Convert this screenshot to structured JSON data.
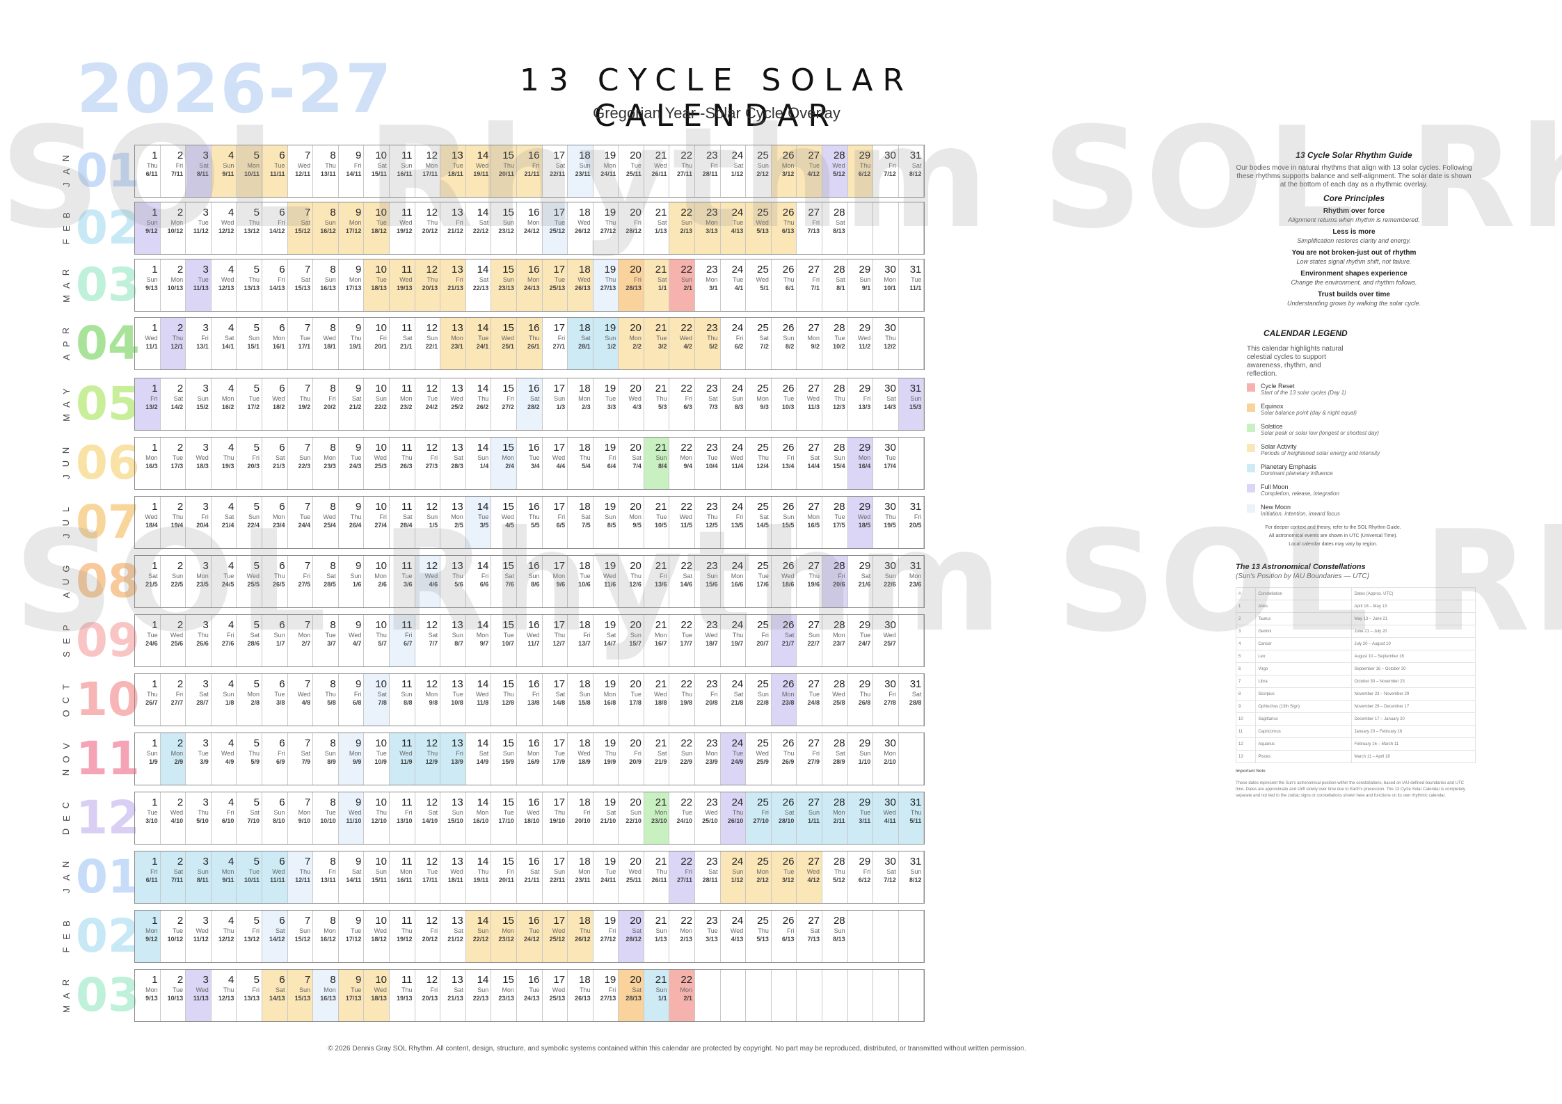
{
  "header": {
    "year": "2026-27",
    "title": "13 CYCLE SOLAR CALENDAR",
    "subtitle": "Gregorian Year -Solar Cycle Overlay"
  },
  "watermark": "SOL Rhythm SOL Rhythm",
  "colors": {
    "reset": "#f6b3ae",
    "equinox": "#f9d29c",
    "solstice": "#c9f0c0",
    "activity": "#fbe6b8",
    "planetary": "#cdeaf5",
    "full": "#dcd6f6",
    "new": "#eaf2fc"
  },
  "months": [
    {
      "abbr": "JAN",
      "num": "01",
      "color": "#c7dcf8",
      "start": "Thu",
      "days": 31,
      "lunar": "6/11",
      "marks": {
        "3": "full",
        "4": "act",
        "5": "act",
        "6": "act",
        "13": "act",
        "14": "act",
        "15": "act",
        "16": "act",
        "18": "new",
        "26": "act",
        "27": "act",
        "28": "full",
        "29": "act"
      }
    },
    {
      "abbr": "FEB",
      "num": "02",
      "color": "#c7e8f5",
      "start": "Sun",
      "days": 28,
      "lunar": "9/12",
      "marks": {
        "1": "full",
        "7": "act",
        "8": "act",
        "9": "act",
        "10": "act",
        "17": "new",
        "22": "act",
        "23": "act",
        "24": "act",
        "25": "act",
        "26": "act"
      }
    },
    {
      "abbr": "MAR",
      "num": "03",
      "color": "#bff0d9",
      "start": "Sun",
      "days": 31,
      "lunar": "9/13",
      "marks": {
        "3": "full",
        "10": "act",
        "11": "act",
        "12": "act",
        "13": "act",
        "15": "act",
        "16": "act",
        "17": "act",
        "18": "act",
        "19": "new",
        "20": "eq",
        "21": "act",
        "22": "reset"
      }
    },
    {
      "abbr": "APR",
      "num": "04",
      "color": "#a9e39a",
      "start": "Wed",
      "days": 30,
      "lunar": "11/1",
      "marks": {
        "2": "full",
        "13": "act",
        "14": "act",
        "15": "act",
        "16": "act",
        "18": "pl",
        "19": "pl",
        "20": "act",
        "21": "act",
        "22": "act",
        "23": "act"
      }
    },
    {
      "abbr": "MAY",
      "num": "05",
      "color": "#c9ee9a",
      "start": "Fri",
      "days": 31,
      "lunar": "13/2",
      "marks": {
        "1": "full",
        "16": "new",
        "31": "full"
      }
    },
    {
      "abbr": "JUN",
      "num": "06",
      "color": "#f8e2a6",
      "start": "Mon",
      "days": 30,
      "lunar": "16/3",
      "marks": {
        "15": "new",
        "21": "sol",
        "29": "full"
      }
    },
    {
      "abbr": "JUL",
      "num": "07",
      "color": "#f8d59a",
      "start": "Wed",
      "days": 31,
      "lunar": "18/4",
      "marks": {
        "14": "new",
        "29": "full"
      }
    },
    {
      "abbr": "AUG",
      "num": "08",
      "color": "#f8c99a",
      "start": "Sat",
      "days": 31,
      "lunar": "21/5",
      "marks": {
        "12": "new",
        "28": "full"
      }
    },
    {
      "abbr": "SEP",
      "num": "09",
      "color": "#f8c4c4",
      "start": "Tue",
      "days": 30,
      "lunar": "24/6",
      "marks": {
        "11": "new",
        "26": "full"
      }
    },
    {
      "abbr": "OCT",
      "num": "10",
      "color": "#f7b5b5",
      "start": "Thu",
      "days": 31,
      "lunar": "26/7",
      "marks": {
        "10": "new",
        "26": "full"
      }
    },
    {
      "abbr": "NOV",
      "num": "11",
      "color": "#f5a3b6",
      "start": "Sun",
      "days": 30,
      "lunar": "1/9",
      "marks": {
        "2": "pl",
        "9": "new",
        "11": "pl",
        "12": "pl",
        "13": "pl",
        "24": "full"
      }
    },
    {
      "abbr": "DEC",
      "num": "12",
      "color": "#d9cff4",
      "start": "Tue",
      "days": 31,
      "lunar": "3/10",
      "marks": {
        "9": "new",
        "21": "sol",
        "24": "full",
        "25": "pl",
        "26": "pl",
        "27": "pl",
        "28": "pl",
        "29": "pl",
        "30": "pl",
        "31": "pl"
      }
    },
    {
      "abbr": "JAN",
      "num": "01",
      "color": "#c7dcf8",
      "start": "Fri",
      "days": 31,
      "lunar": "6/11",
      "marks": {
        "1": "pl",
        "2": "pl",
        "3": "pl",
        "4": "pl",
        "5": "pl",
        "6": "pl",
        "7": "new",
        "22": "full",
        "24": "act",
        "25": "act",
        "26": "act",
        "27": "act"
      }
    },
    {
      "abbr": "FEB",
      "num": "02",
      "color": "#c7e8f5",
      "start": "Mon",
      "days": 28,
      "lunar": "9/12",
      "marks": {
        "1": "pl",
        "6": "new",
        "14": "act",
        "15": "act",
        "16": "act",
        "17": "act",
        "18": "act",
        "20": "full"
      }
    },
    {
      "abbr": "MAR",
      "num": "03",
      "color": "#bff0d9",
      "start": "Mon",
      "days": 22,
      "lunar": "9/13",
      "marks": {
        "3": "full",
        "6": "act",
        "7": "act",
        "8": "new",
        "9": "act",
        "10": "act",
        "20": "eq",
        "21": "pl",
        "22": "reset"
      }
    }
  ],
  "weekdays": [
    "Sun",
    "Mon",
    "Tue",
    "Wed",
    "Thu",
    "Fri",
    "Sat"
  ],
  "guide": {
    "title": "13 Cycle Solar Rhythm Guide",
    "intro": "Our bodies move in natural rhythms that align with 13 solar cycles. Following these rhythms supports balance and self-alignment. The solar date is shown at the bottom of each day as a rhythmic overlay.",
    "principles_title": "Core Principles",
    "principles": [
      {
        "head": "Rhythm over force",
        "body": "Alignment returns when rhythm is remembered."
      },
      {
        "head": "Less is more",
        "body": "Simplification restores clarity and energy."
      },
      {
        "head": "You are not broken-just out of rhythm",
        "body": "Low states signal rhythm shift, not failure."
      },
      {
        "head": "Environment shapes experience",
        "body": "Change the environment, and rhythm follows."
      },
      {
        "head": "Trust builds over time",
        "body": "Understanding grows by walking the solar cycle."
      }
    ]
  },
  "legend": {
    "title": "CALENDAR LEGEND",
    "intro": "This calendar highlights natural celestial cycles to support awareness, rhythm, and reflection.",
    "items": [
      {
        "key": "reset",
        "name": "Cycle Reset",
        "desc": "Start of the 13 solar cycles (Day 1)"
      },
      {
        "key": "equinox",
        "name": "Equinox",
        "desc": "Solar balance point (day & night equal)"
      },
      {
        "key": "solstice",
        "name": "Solstice",
        "desc": "Solar peak or solar low (longest or shortest day)"
      },
      {
        "key": "activity",
        "name": "Solar Activity",
        "desc": "Periods of heightened solar energy and intensity"
      },
      {
        "key": "planetary",
        "name": "Planetary Emphasis",
        "desc": "Dominant planetary influence"
      },
      {
        "key": "full",
        "name": "Full Moon",
        "desc": "Completion, release, integration"
      },
      {
        "key": "new",
        "name": "New Moon",
        "desc": "Initiation, intention, inward focus"
      }
    ],
    "note": "For deeper context and theory, refer to the SOL Rhythm Guide. All astronomical events are shown in UTC (Universal Time). Local calendar dates may vary by region."
  },
  "constellations": {
    "title": "The 13 Astronomical Constellations",
    "subtitle": "(Sun's Position by IAU Boundaries — UTC)",
    "rows": [
      [
        "#",
        "Constellation",
        "Dates (Approx. UTC)"
      ],
      [
        "1",
        "Aries",
        "April 18 – May 13"
      ],
      [
        "2",
        "Taurus",
        "May 13 – June 21"
      ],
      [
        "3",
        "Gemini",
        "June 21 – July 20"
      ],
      [
        "4",
        "Cancer",
        "July 20 – August 10"
      ],
      [
        "5",
        "Leo",
        "August 10 – September 16"
      ],
      [
        "6",
        "Virgo",
        "September 16 – October 30"
      ],
      [
        "7",
        "Libra",
        "October 30 – November 23"
      ],
      [
        "8",
        "Scorpius",
        "November 23 – November 29"
      ],
      [
        "9",
        "Ophiuchus (13th Sign)",
        "November 29 – December 17"
      ],
      [
        "10",
        "Sagittarius",
        "December 17 – January 20"
      ],
      [
        "11",
        "Capricornus",
        "January 20 – February 16"
      ],
      [
        "12",
        "Aquarius",
        "February 16 – March 11"
      ],
      [
        "13",
        "Pisces",
        "March 11 – April 18"
      ]
    ],
    "note_title": "Important Note",
    "note": "These dates represent the Sun's astronomical position within the constellations, based on IAU-defined boundaries and UTC time. Dates are approximate and shift slowly over time due to Earth's precession. The 13 Cycle Solar Calendar is completely separate and not tied to the zodiac signs or constellations shown here and functions on its own rhythmic calendar."
  },
  "footer": "© 2026 Dennis Gray SOL Rhythm. All content, design, structure, and symbolic systems contained within this calendar are protected by copyright. No part may be reproduced, distributed, or transmitted without written permission."
}
